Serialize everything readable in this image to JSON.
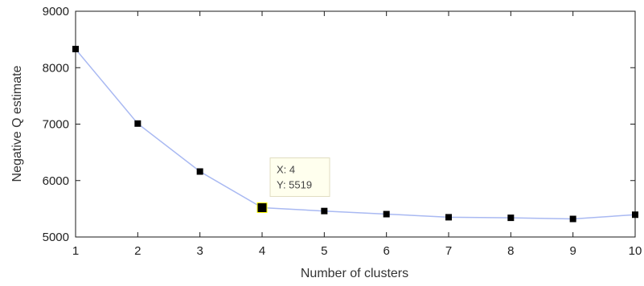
{
  "chart_data": {
    "type": "line",
    "title": "",
    "xlabel": "Number of clusters",
    "ylabel": "Negative Q estimate",
    "xlim": [
      1,
      10
    ],
    "ylim": [
      5000,
      9000
    ],
    "x_ticks": [
      "1",
      "2",
      "3",
      "4",
      "5",
      "6",
      "7",
      "8",
      "9",
      "10"
    ],
    "y_ticks": [
      "5000",
      "6000",
      "7000",
      "8000",
      "9000"
    ],
    "grid": false,
    "series": [
      {
        "x": [
          1,
          2,
          3,
          4,
          5,
          6,
          7,
          8,
          9,
          10
        ],
        "values": [
          8330,
          7010,
          6160,
          5519,
          5460,
          5405,
          5350,
          5340,
          5320,
          5395
        ]
      }
    ],
    "line_color": "#a9b9f2",
    "marker_color": "#000000",
    "datatip": {
      "x_label": "X: 4",
      "y_label": "Y: 5519",
      "point_x": 4,
      "point_y": 5519
    }
  }
}
